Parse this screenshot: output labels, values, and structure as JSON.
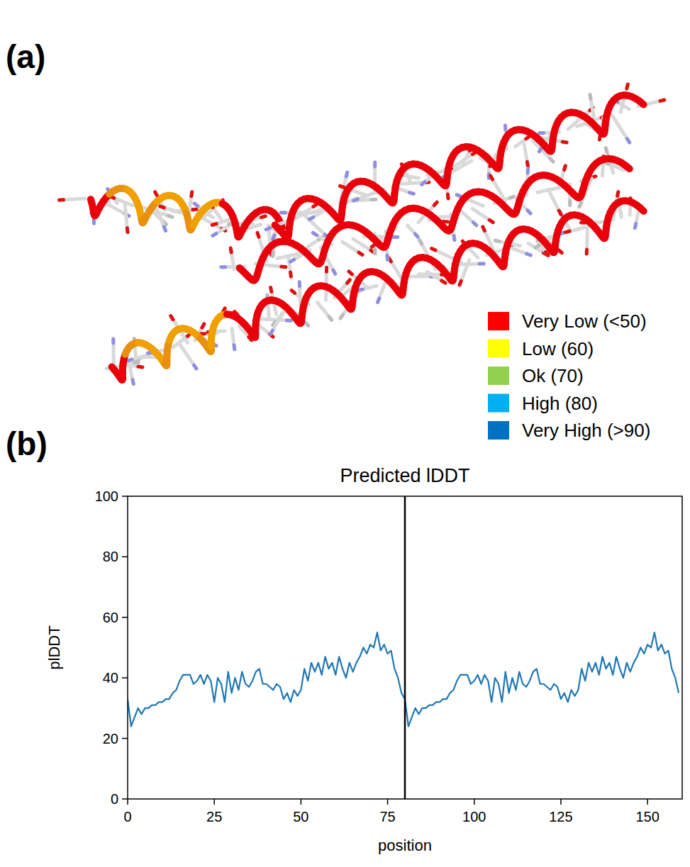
{
  "panel_labels": [
    "(a)",
    "(b)"
  ],
  "structure_legend": [
    {
      "label": "Very Low (<50)",
      "color": "#ff0000"
    },
    {
      "label": "Low (60)",
      "color": "#ffff00"
    },
    {
      "label": "Ok (70)",
      "color": "#92d050"
    },
    {
      "label": "High (80)",
      "color": "#00b0f0"
    },
    {
      "label": "Very High (>90)",
      "color": "#0070c0"
    }
  ],
  "chart_data": {
    "type": "line",
    "title": "Predicted lDDT",
    "x_label": "position",
    "y_label": "plDDT",
    "color": "#1f77b4",
    "x": [
      0,
      1,
      2,
      3,
      4,
      5,
      6,
      7,
      8,
      9,
      10,
      11,
      12,
      13,
      14,
      15,
      16,
      17,
      18,
      19,
      20,
      21,
      22,
      23,
      24,
      25,
      26,
      27,
      28,
      29,
      30,
      31,
      32,
      33,
      34,
      35,
      36,
      37,
      38,
      39,
      40,
      41,
      42,
      43,
      44,
      45,
      46,
      47,
      48,
      49,
      50,
      51,
      52,
      53,
      54,
      55,
      56,
      57,
      58,
      59,
      60,
      61,
      62,
      63,
      64,
      65,
      66,
      67,
      68,
      69,
      70,
      71,
      72,
      73,
      74,
      75,
      76,
      77,
      78,
      79,
      80,
      81,
      82,
      83,
      84,
      85,
      86,
      87,
      88,
      89,
      90,
      91,
      92,
      93,
      94,
      95,
      96,
      97,
      98,
      99,
      100,
      101,
      102,
      103,
      104,
      105,
      106,
      107,
      108,
      109,
      110,
      111,
      112,
      113,
      114,
      115,
      116,
      117,
      118,
      119,
      120,
      121,
      122,
      123,
      124,
      125,
      126,
      127,
      128,
      129,
      130,
      131,
      132,
      133,
      134,
      135,
      136,
      137,
      138,
      139,
      140,
      141,
      142,
      143,
      144,
      145,
      146,
      147,
      148,
      149,
      150,
      151,
      152,
      153,
      154,
      155,
      156,
      157,
      158,
      159
    ],
    "values": [
      33,
      24,
      27,
      30,
      28,
      30,
      30,
      31,
      31,
      32,
      32,
      33,
      33,
      35,
      36,
      39,
      41,
      41,
      41,
      38,
      39,
      41,
      38,
      41,
      39,
      32,
      40,
      38,
      32,
      42,
      35,
      40,
      36,
      42,
      38,
      37,
      39,
      42,
      43,
      38,
      38,
      37,
      36,
      38,
      37,
      33,
      35,
      32,
      36,
      34,
      36,
      43,
      39,
      45,
      42,
      45,
      41,
      47,
      43,
      45,
      41,
      47,
      43,
      40,
      45,
      42,
      45,
      47,
      50,
      48,
      51,
      50,
      55,
      49,
      51,
      48,
      49,
      43,
      40,
      35,
      33,
      24,
      27,
      30,
      28,
      30,
      30,
      31,
      31,
      32,
      32,
      33,
      33,
      35,
      36,
      39,
      41,
      41,
      41,
      38,
      39,
      41,
      38,
      41,
      39,
      32,
      40,
      38,
      32,
      42,
      35,
      40,
      36,
      42,
      38,
      37,
      39,
      42,
      43,
      38,
      38,
      37,
      36,
      38,
      37,
      33,
      35,
      32,
      36,
      34,
      36,
      43,
      39,
      45,
      42,
      45,
      41,
      47,
      43,
      45,
      41,
      47,
      43,
      40,
      45,
      42,
      45,
      47,
      50,
      48,
      51,
      50,
      55,
      49,
      51,
      48,
      49,
      43,
      40,
      35
    ],
    "vlines": [
      80
    ],
    "xlim": [
      0,
      160
    ],
    "ylim": [
      0,
      100
    ],
    "xticks": [
      0,
      25,
      50,
      75,
      100,
      125,
      150
    ],
    "yticks": [
      0,
      20,
      40,
      60,
      80,
      100
    ],
    "grid": false
  }
}
